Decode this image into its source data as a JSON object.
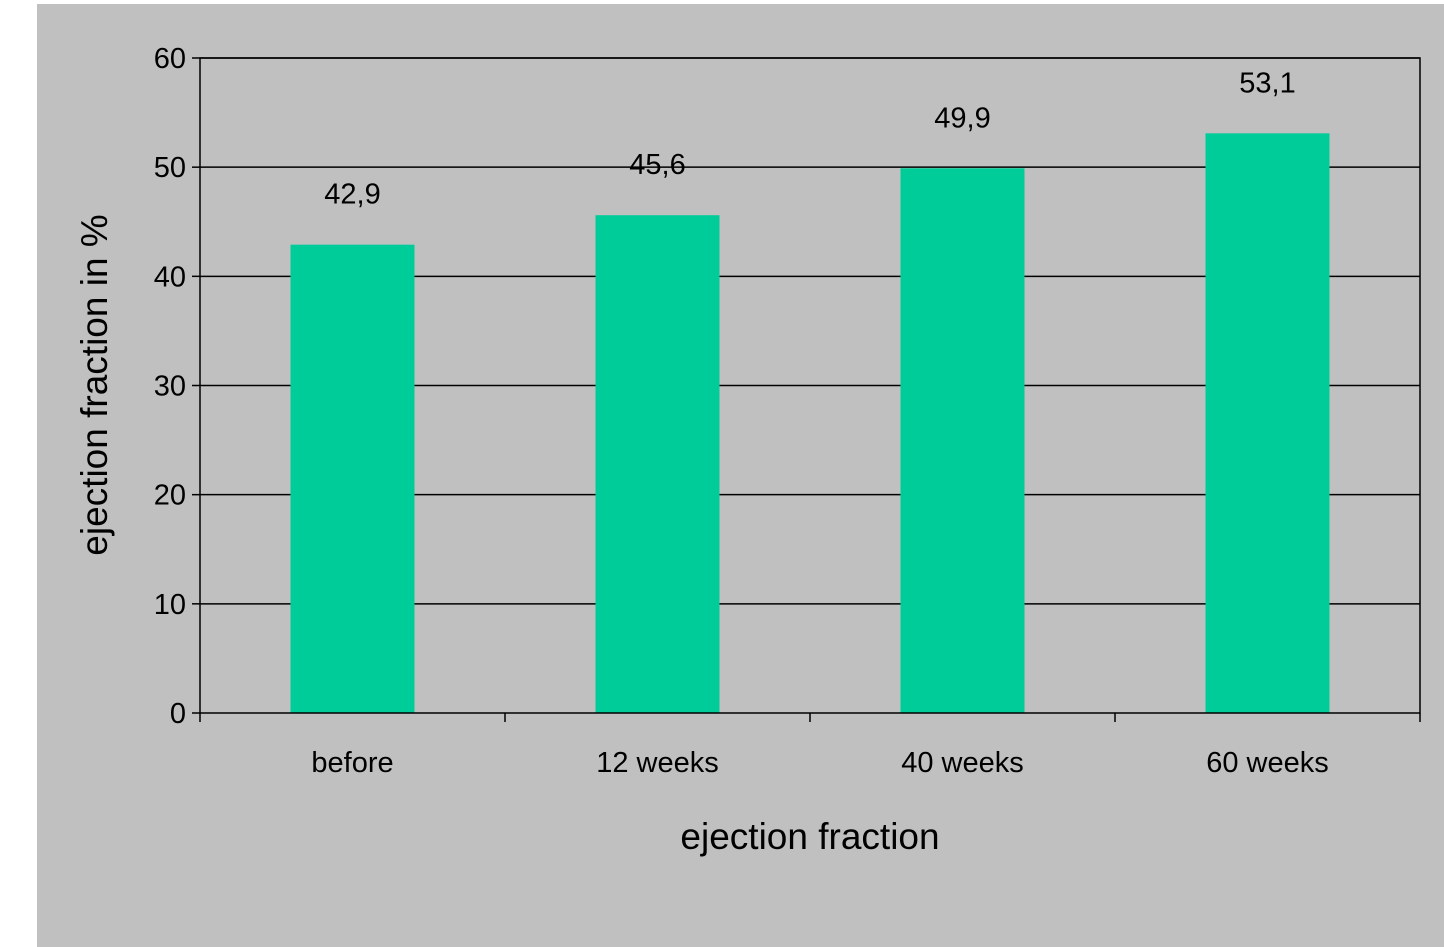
{
  "chart_data": {
    "type": "bar",
    "categories": [
      "before",
      "12 weeks",
      "40 weeks",
      "60 weeks"
    ],
    "values": [
      42.9,
      45.6,
      49.9,
      53.1
    ],
    "data_labels": [
      "42,9",
      "45,6",
      "49,9",
      "53,1"
    ],
    "title": "",
    "xlabel": "ejection fraction",
    "ylabel": "ejection fraction in %",
    "ylim": [
      0,
      60
    ],
    "yticks": [
      0,
      10,
      20,
      30,
      40,
      50,
      60
    ],
    "grid": true,
    "legend": "none",
    "colors": {
      "bar": "#00cc99",
      "background": "#c0c0c0",
      "grid": "#000000"
    }
  }
}
